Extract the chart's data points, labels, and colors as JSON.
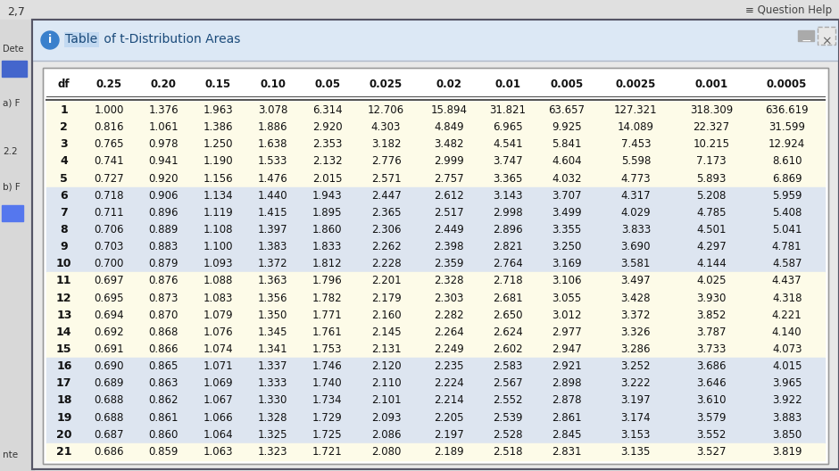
{
  "title": "Table of t-Distribution Areas",
  "headers": [
    "df",
    "0.25",
    "0.20",
    "0.15",
    "0.10",
    "0.05",
    "0.025",
    "0.02",
    "0.01",
    "0.005",
    "0.0025",
    "0.001",
    "0.0005"
  ],
  "rows": [
    [
      1,
      1.0,
      1.376,
      1.963,
      3.078,
      6.314,
      12.706,
      15.894,
      31.821,
      63.657,
      127.321,
      318.309,
      636.619
    ],
    [
      2,
      0.816,
      1.061,
      1.386,
      1.886,
      2.92,
      4.303,
      4.849,
      6.965,
      9.925,
      14.089,
      22.327,
      31.599
    ],
    [
      3,
      0.765,
      0.978,
      1.25,
      1.638,
      2.353,
      3.182,
      3.482,
      4.541,
      5.841,
      7.453,
      10.215,
      12.924
    ],
    [
      4,
      0.741,
      0.941,
      1.19,
      1.533,
      2.132,
      2.776,
      2.999,
      3.747,
      4.604,
      5.598,
      7.173,
      8.61
    ],
    [
      5,
      0.727,
      0.92,
      1.156,
      1.476,
      2.015,
      2.571,
      2.757,
      3.365,
      4.032,
      4.773,
      5.893,
      6.869
    ],
    [
      6,
      0.718,
      0.906,
      1.134,
      1.44,
      1.943,
      2.447,
      2.612,
      3.143,
      3.707,
      4.317,
      5.208,
      5.959
    ],
    [
      7,
      0.711,
      0.896,
      1.119,
      1.415,
      1.895,
      2.365,
      2.517,
      2.998,
      3.499,
      4.029,
      4.785,
      5.408
    ],
    [
      8,
      0.706,
      0.889,
      1.108,
      1.397,
      1.86,
      2.306,
      2.449,
      2.896,
      3.355,
      3.833,
      4.501,
      5.041
    ],
    [
      9,
      0.703,
      0.883,
      1.1,
      1.383,
      1.833,
      2.262,
      2.398,
      2.821,
      3.25,
      3.69,
      4.297,
      4.781
    ],
    [
      10,
      0.7,
      0.879,
      1.093,
      1.372,
      1.812,
      2.228,
      2.359,
      2.764,
      3.169,
      3.581,
      4.144,
      4.587
    ],
    [
      11,
      0.697,
      0.876,
      1.088,
      1.363,
      1.796,
      2.201,
      2.328,
      2.718,
      3.106,
      3.497,
      4.025,
      4.437
    ],
    [
      12,
      0.695,
      0.873,
      1.083,
      1.356,
      1.782,
      2.179,
      2.303,
      2.681,
      3.055,
      3.428,
      3.93,
      4.318
    ],
    [
      13,
      0.694,
      0.87,
      1.079,
      1.35,
      1.771,
      2.16,
      2.282,
      2.65,
      3.012,
      3.372,
      3.852,
      4.221
    ],
    [
      14,
      0.692,
      0.868,
      1.076,
      1.345,
      1.761,
      2.145,
      2.264,
      2.624,
      2.977,
      3.326,
      3.787,
      4.14
    ],
    [
      15,
      0.691,
      0.866,
      1.074,
      1.341,
      1.753,
      2.131,
      2.249,
      2.602,
      2.947,
      3.286,
      3.733,
      4.073
    ],
    [
      16,
      0.69,
      0.865,
      1.071,
      1.337,
      1.746,
      2.12,
      2.235,
      2.583,
      2.921,
      3.252,
      3.686,
      4.015
    ],
    [
      17,
      0.689,
      0.863,
      1.069,
      1.333,
      1.74,
      2.11,
      2.224,
      2.567,
      2.898,
      3.222,
      3.646,
      3.965
    ],
    [
      18,
      0.688,
      0.862,
      1.067,
      1.33,
      1.734,
      2.101,
      2.214,
      2.552,
      2.878,
      3.197,
      3.61,
      3.922
    ],
    [
      19,
      0.688,
      0.861,
      1.066,
      1.328,
      1.729,
      2.093,
      2.205,
      2.539,
      2.861,
      3.174,
      3.579,
      3.883
    ],
    [
      20,
      0.687,
      0.86,
      1.064,
      1.325,
      1.725,
      2.086,
      2.197,
      2.528,
      2.845,
      3.153,
      3.552,
      3.85
    ],
    [
      21,
      0.686,
      0.859,
      1.063,
      1.323,
      1.721,
      2.08,
      2.189,
      2.518,
      2.831,
      3.135,
      3.527,
      3.819
    ]
  ],
  "bg_outer": "#e8e8e8",
  "bg_sidebar": "#f0f0f0",
  "bg_title_bar": "#dce8f5",
  "bg_table": "#ffffff",
  "bg_yellow": "#fdfbe8",
  "bg_blue": "#dde5f0",
  "text_dark": "#111111",
  "text_title": "#1a4a7a",
  "line_color": "#555555",
  "border_color": "#999999",
  "sidebar_text_color": "#333333",
  "topbar_bg": "#e0e0e0",
  "row_group_colors": [
    "#fdfbe8",
    "#dde5f0",
    "#fdfbe8",
    "#dde5f0",
    "#fdfbe8"
  ],
  "popup_border": "#555566",
  "minus_button_color": "#555555",
  "x_button_color": "#888888"
}
